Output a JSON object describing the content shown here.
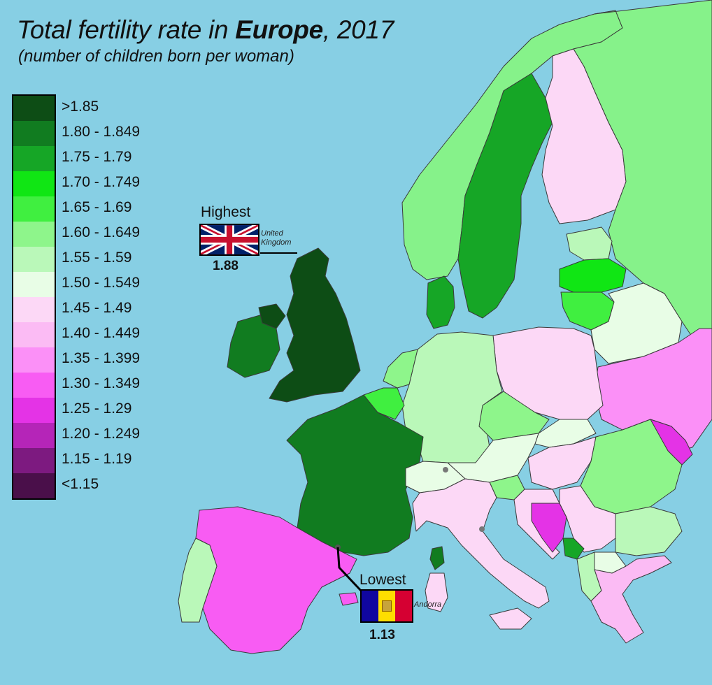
{
  "title": {
    "prefix": "Total fertility rate in ",
    "emphasis": "Europe",
    "suffix": ", 2017"
  },
  "subtitle": "(number of children born per woman)",
  "legend": [
    {
      "label": ">1.85",
      "color": "#0d4d15"
    },
    {
      "label": "1.80 - 1.849",
      "color": "#117c20"
    },
    {
      "label": "1.75 - 1.79",
      "color": "#16a626"
    },
    {
      "label": "1.70 - 1.749",
      "color": "#10e614"
    },
    {
      "label": "1.65 - 1.69",
      "color": "#40ef40"
    },
    {
      "label": "1.60 - 1.649",
      "color": "#8ef58b"
    },
    {
      "label": "1.55 - 1.59",
      "color": "#baf8b9"
    },
    {
      "label": "1.50 - 1.549",
      "color": "#e8fde6"
    },
    {
      "label": "1.45 - 1.49",
      "color": "#fcd8f6"
    },
    {
      "label": "1.40 - 1.449",
      "color": "#fbbbf4"
    },
    {
      "label": "1.35 - 1.399",
      "color": "#fb90f7"
    },
    {
      "label": "1.30 - 1.349",
      "color": "#f85cf3"
    },
    {
      "label": "1.25 - 1.29",
      "color": "#e433e6"
    },
    {
      "label": "1.20 - 1.249",
      "color": "#b525b8"
    },
    {
      "label": "1.15 - 1.19",
      "color": "#7d1a80"
    },
    {
      "label": "<1.15",
      "color": "#4a0f4a"
    }
  ],
  "highest": {
    "heading": "Highest",
    "country": "United Kingdom",
    "value": "1.88"
  },
  "lowest": {
    "heading": "Lowest",
    "country": "Andorra",
    "value": "1.13"
  },
  "colors": {
    "sea": "#87cfe4",
    "outside_land": "#86f28a",
    "border": "#333333"
  }
}
